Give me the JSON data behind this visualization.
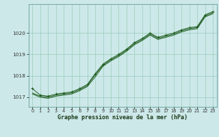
{
  "title": "Graphe pression niveau de la mer (hPa)",
  "bg_color": "#cce8e8",
  "grid_color": "#99ccbb",
  "line_color": "#1e5c1e",
  "xlim": [
    -0.5,
    23.5
  ],
  "ylim": [
    1016.55,
    1021.35
  ],
  "yticks": [
    1017,
    1018,
    1019,
    1020
  ],
  "xticks": [
    0,
    1,
    2,
    3,
    4,
    5,
    6,
    7,
    8,
    9,
    10,
    11,
    12,
    13,
    14,
    15,
    16,
    17,
    18,
    19,
    20,
    21,
    22,
    23
  ],
  "series1_x": [
    0,
    1,
    2,
    3,
    4,
    5,
    6,
    7,
    8,
    9,
    10,
    11,
    12,
    13,
    14,
    15,
    16,
    17,
    18,
    19,
    20,
    21,
    22,
    23
  ],
  "series1_y": [
    1017.2,
    1017.05,
    1017.0,
    1017.1,
    1017.15,
    1017.2,
    1017.35,
    1017.55,
    1018.05,
    1018.5,
    1018.75,
    1018.95,
    1019.2,
    1019.5,
    1019.7,
    1019.95,
    1019.75,
    1019.85,
    1019.95,
    1020.1,
    1020.2,
    1020.25,
    1020.8,
    1020.95
  ],
  "series2_x": [
    0,
    1,
    2,
    3,
    4,
    5,
    6,
    7,
    8,
    9,
    10,
    11,
    12,
    13,
    14,
    15,
    16,
    17,
    18,
    19,
    20,
    21,
    22,
    23
  ],
  "series2_y": [
    1017.15,
    1017.0,
    1016.95,
    1017.05,
    1017.1,
    1017.15,
    1017.3,
    1017.5,
    1017.95,
    1018.45,
    1018.7,
    1018.9,
    1019.15,
    1019.45,
    1019.65,
    1019.9,
    1019.7,
    1019.8,
    1019.9,
    1020.05,
    1020.15,
    1020.2,
    1020.75,
    1020.9
  ],
  "series3_x": [
    0,
    1,
    2,
    3,
    4,
    5,
    6,
    7,
    8,
    9,
    10,
    11,
    12,
    13,
    14,
    15,
    16,
    17,
    18,
    19,
    20,
    21,
    22,
    23
  ],
  "series3_y": [
    1017.4,
    1017.1,
    1017.05,
    1017.15,
    1017.2,
    1017.25,
    1017.4,
    1017.6,
    1018.1,
    1018.55,
    1018.8,
    1019.0,
    1019.25,
    1019.55,
    1019.75,
    1020.0,
    1019.8,
    1019.9,
    1020.0,
    1020.15,
    1020.25,
    1020.3,
    1020.85,
    1021.0
  ],
  "title_fontsize": 6.0,
  "tick_fontsize": 4.8
}
